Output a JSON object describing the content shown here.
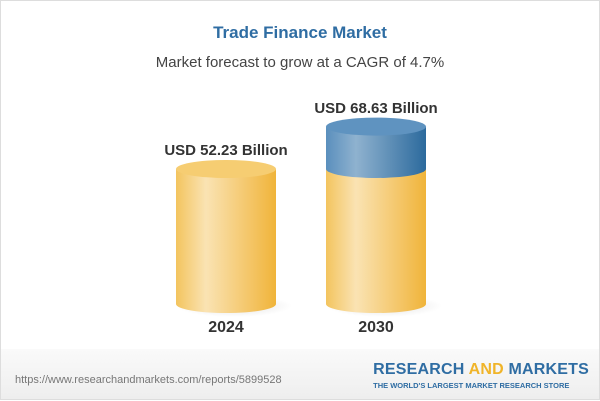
{
  "header": {
    "title": "Trade Finance Market",
    "subtitle": "Market forecast to grow at a CAGR of 4.7%"
  },
  "chart_data": {
    "type": "bar",
    "style": "3d-cylinder",
    "title": "Trade Finance Market",
    "subtitle": "Market forecast to grow at a CAGR of 4.7%",
    "categories": [
      "2024",
      "2030"
    ],
    "values": [
      52.23,
      68.63
    ],
    "data_labels": [
      "USD 52.23 Billion",
      "USD 68.63 Billion"
    ],
    "unit": "USD Billion",
    "cagr": "4.7%",
    "colors": {
      "base": "#f5c65a",
      "growth": "#4a83b3"
    }
  },
  "footer": {
    "url": "https://www.researchandmarkets.com/reports/5899528",
    "logo_part1": "RESEARCH ",
    "logo_part2": "AND",
    "logo_part3": " MARKETS",
    "tagline": "THE WORLD'S LARGEST MARKET RESEARCH STORE"
  }
}
